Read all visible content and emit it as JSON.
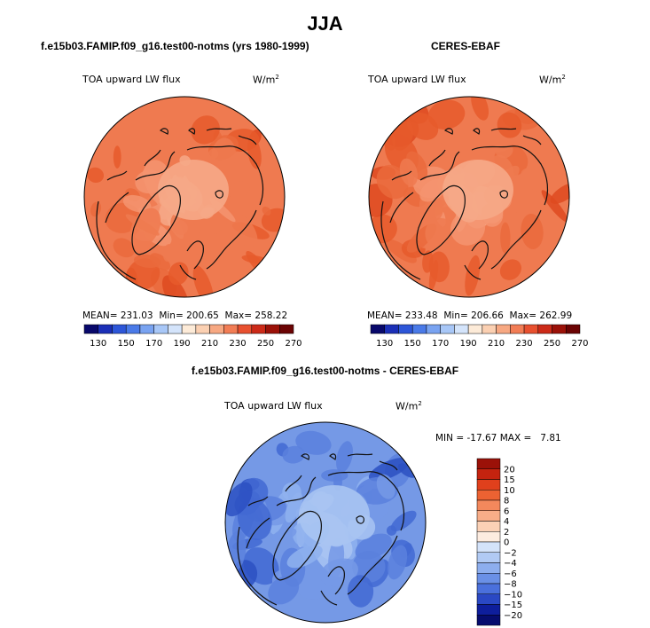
{
  "figure": {
    "season_title": "JJA",
    "colors": {
      "land_outline": "#111111",
      "map_border": "#000000"
    }
  },
  "chart_data": [
    {
      "type": "heatmap",
      "projection": "north-polar-stereographic",
      "title": "f.e15b03.FAMIP.f09_g16.test00-notms (yrs 1980-1999)",
      "variable": "TOA upward LW flux",
      "units": "W/m",
      "units_exponent": "2",
      "stats": {
        "mean": "231.03",
        "min": "200.65",
        "max": "258.22"
      },
      "stats_labels": {
        "mean": "MEAN=",
        "min": "Min=",
        "max": "Max="
      },
      "colorbar": {
        "orientation": "horizontal",
        "tick_labels": [
          "130",
          "150",
          "170",
          "190",
          "210",
          "230",
          "250",
          "270"
        ],
        "colors": [
          "#08086b",
          "#1b2fb7",
          "#2d56d8",
          "#4a7ae8",
          "#79a3f1",
          "#a8c7f7",
          "#d4e4fb",
          "#fdebd8",
          "#fbd0b2",
          "#f7a882",
          "#f27d55",
          "#e8502f",
          "#cc2a18",
          "#9b1108",
          "#6b0303"
        ]
      },
      "field_colors": [
        "#f6a887",
        "#f49470",
        "#ef7a50",
        "#ea6a3c",
        "#e65a2c",
        "#de4a20"
      ]
    },
    {
      "type": "heatmap",
      "projection": "north-polar-stereographic",
      "title": "CERES-EBAF",
      "variable": "TOA upward LW flux",
      "units": "W/m",
      "units_exponent": "2",
      "stats": {
        "mean": "233.48",
        "min": "206.66",
        "max": "262.99"
      },
      "stats_labels": {
        "mean": "MEAN=",
        "min": "Min=",
        "max": "Max="
      },
      "colorbar": {
        "orientation": "horizontal",
        "tick_labels": [
          "130",
          "150",
          "170",
          "190",
          "210",
          "230",
          "250",
          "270"
        ],
        "colors": [
          "#08086b",
          "#1b2fb7",
          "#2d56d8",
          "#4a7ae8",
          "#79a3f1",
          "#a8c7f7",
          "#d4e4fb",
          "#fdebd8",
          "#fbd0b2",
          "#f7a882",
          "#f27d55",
          "#e8502f",
          "#cc2a18",
          "#9b1108",
          "#6b0303"
        ]
      },
      "field_colors": [
        "#f6a887",
        "#f49470",
        "#ef7a50",
        "#ea6a3c",
        "#e65a2c",
        "#de4a20"
      ]
    },
    {
      "type": "heatmap",
      "projection": "north-polar-stereographic",
      "title": "f.e15b03.FAMIP.f09_g16.test00-notms - CERES-EBAF",
      "variable": "TOA upward LW flux",
      "units": "W/m",
      "units_exponent": "2",
      "stats": {
        "min": "-17.67",
        "max": "7.81"
      },
      "stats_labels": {
        "min": "MIN =",
        "max": "MAX ="
      },
      "colorbar": {
        "orientation": "vertical",
        "tick_labels": [
          "20",
          "15",
          "10",
          "8",
          "6",
          "4",
          "2",
          "0",
          "−2",
          "−4",
          "−6",
          "−8",
          "−10",
          "−15",
          "−20"
        ],
        "colors": [
          "#9b1108",
          "#c4230f",
          "#e0401c",
          "#ec6232",
          "#f3885c",
          "#f8ad88",
          "#fbd1b6",
          "#fdece0",
          "#d4e3fa",
          "#b1caf4",
          "#8daeee",
          "#6a90e6",
          "#4a70dc",
          "#2a48c4",
          "#0e1e9c",
          "#060c6e"
        ]
      },
      "field_colors": [
        "#a9c4f2",
        "#8fb1ee",
        "#7599e6",
        "#5b80dd",
        "#4268d2",
        "#2c50c2"
      ]
    }
  ]
}
